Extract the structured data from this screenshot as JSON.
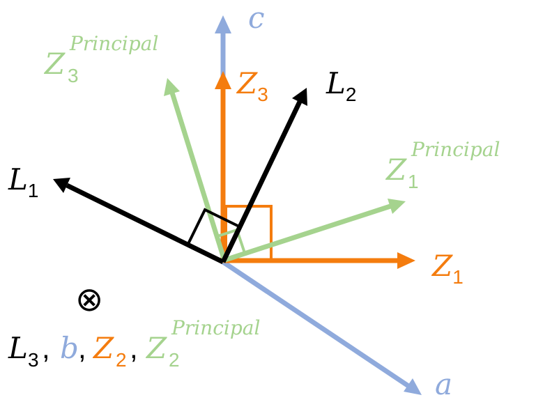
{
  "colors": {
    "crystal": "#8faadc",
    "lab": "#000000",
    "fixed_frame": "#f47c0e",
    "principal": "#a5d38e"
  },
  "labels": {
    "c": {
      "main": "c"
    },
    "a": {
      "main": "a"
    },
    "z3": {
      "main": "Z",
      "sub": "3"
    },
    "z1": {
      "main": "Z",
      "sub": "1"
    },
    "l1": {
      "main": "L",
      "sub": "1"
    },
    "l2": {
      "main": "L",
      "sub": "2"
    },
    "z3p": {
      "main": "Z",
      "sub": "3",
      "sup": "Principal"
    },
    "z1p": {
      "main": "Z",
      "sub": "1",
      "sup": "Principal"
    },
    "bottom": {
      "l3_main": "L",
      "l3_sub": "3",
      "comma": ",",
      "b_main": "b",
      "z2_main": "Z",
      "z2_sub": "2",
      "z2p_main": "Z",
      "z2p_sub": "2",
      "z2p_sup": "Principal"
    }
  },
  "into_page_symbol": "⊗"
}
